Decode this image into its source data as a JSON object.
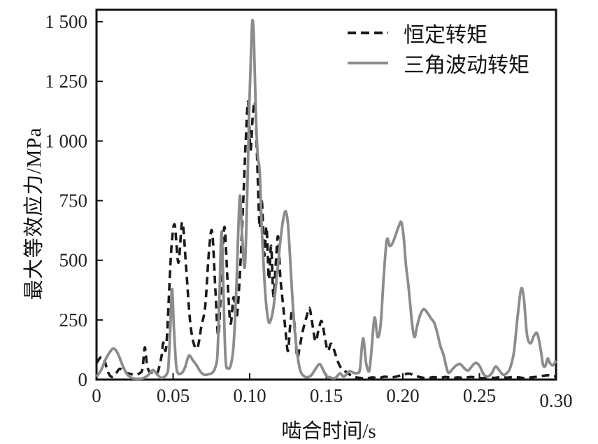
{
  "chart_data": {
    "type": "line",
    "title": "",
    "xlabel": "啮合时间/s",
    "ylabel": "最大等效应力/MPa",
    "xlim": [
      0,
      0.3
    ],
    "ylim": [
      0,
      1550
    ],
    "grid": false,
    "legend_position": "top-right-inside",
    "xticks": {
      "values": [
        0,
        0.05,
        0.1,
        0.15,
        0.2,
        0.25,
        0.3
      ],
      "labels": [
        "0",
        "0.05",
        "0.10",
        "0.15",
        "0.20",
        "0.25",
        "0.30"
      ]
    },
    "yticks": {
      "values": [
        0,
        250,
        500,
        750,
        1000,
        1250,
        1500
      ],
      "labels": [
        "0",
        "250",
        "500",
        "750",
        "1 000",
        "1 250",
        "1 500"
      ]
    },
    "series": [
      {
        "name": "恒定转矩",
        "line_style": "dashed",
        "color": "#1a1a1a",
        "points": [
          [
            0.0,
            70
          ],
          [
            0.003,
            95
          ],
          [
            0.005,
            85
          ],
          [
            0.007,
            40
          ],
          [
            0.009,
            15
          ],
          [
            0.011,
            12
          ],
          [
            0.013,
            28
          ],
          [
            0.015,
            45
          ],
          [
            0.017,
            40
          ],
          [
            0.019,
            30
          ],
          [
            0.022,
            24
          ],
          [
            0.025,
            20
          ],
          [
            0.028,
            26
          ],
          [
            0.03,
            45
          ],
          [
            0.0315,
            135
          ],
          [
            0.033,
            60
          ],
          [
            0.035,
            30
          ],
          [
            0.038,
            35
          ],
          [
            0.04,
            32
          ],
          [
            0.0425,
            100
          ],
          [
            0.0435,
            155
          ],
          [
            0.045,
            120
          ],
          [
            0.046,
            180
          ],
          [
            0.0475,
            380
          ],
          [
            0.049,
            560
          ],
          [
            0.051,
            650
          ],
          [
            0.0535,
            490
          ],
          [
            0.056,
            660
          ],
          [
            0.0585,
            470
          ],
          [
            0.061,
            250
          ],
          [
            0.0635,
            150
          ],
          [
            0.066,
            135
          ],
          [
            0.0685,
            225
          ],
          [
            0.071,
            310
          ],
          [
            0.0735,
            545
          ],
          [
            0.0755,
            620
          ],
          [
            0.0775,
            390
          ],
          [
            0.0795,
            185
          ],
          [
            0.0815,
            420
          ],
          [
            0.0835,
            640
          ],
          [
            0.0855,
            420
          ],
          [
            0.0875,
            235
          ],
          [
            0.0895,
            345
          ],
          [
            0.0915,
            260
          ],
          [
            0.0935,
            430
          ],
          [
            0.0955,
            700
          ],
          [
            0.0975,
            1010
          ],
          [
            0.099,
            1165
          ],
          [
            0.1005,
            960
          ],
          [
            0.102,
            1105
          ],
          [
            0.1035,
            1155
          ],
          [
            0.105,
            900
          ],
          [
            0.1065,
            640
          ],
          [
            0.108,
            745
          ],
          [
            0.1095,
            520
          ],
          [
            0.111,
            640
          ],
          [
            0.1125,
            420
          ],
          [
            0.114,
            560
          ],
          [
            0.1155,
            350
          ],
          [
            0.117,
            480
          ],
          [
            0.1185,
            600
          ],
          [
            0.12,
            430
          ],
          [
            0.122,
            300
          ],
          [
            0.1235,
            195
          ],
          [
            0.125,
            120
          ],
          [
            0.1265,
            230
          ],
          [
            0.128,
            300
          ],
          [
            0.1295,
            215
          ],
          [
            0.131,
            95
          ],
          [
            0.1325,
            130
          ],
          [
            0.1345,
            200
          ],
          [
            0.137,
            260
          ],
          [
            0.139,
            300
          ],
          [
            0.141,
            230
          ],
          [
            0.143,
            160
          ],
          [
            0.145,
            210
          ],
          [
            0.147,
            245
          ],
          [
            0.149,
            180
          ],
          [
            0.151,
            120
          ],
          [
            0.153,
            150
          ],
          [
            0.155,
            125
          ],
          [
            0.157,
            85
          ],
          [
            0.159,
            55
          ],
          [
            0.161,
            40
          ],
          [
            0.163,
            32
          ],
          [
            0.165,
            22
          ],
          [
            0.167,
            14
          ],
          [
            0.169,
            10
          ],
          [
            0.172,
            7
          ],
          [
            0.176,
            5
          ],
          [
            0.18,
            9
          ],
          [
            0.184,
            6
          ],
          [
            0.188,
            12
          ],
          [
            0.192,
            9
          ],
          [
            0.196,
            13
          ],
          [
            0.2,
            20
          ],
          [
            0.204,
            25
          ],
          [
            0.208,
            16
          ],
          [
            0.212,
            9
          ],
          [
            0.216,
            6
          ],
          [
            0.22,
            10
          ],
          [
            0.224,
            7
          ],
          [
            0.228,
            11
          ],
          [
            0.232,
            6
          ],
          [
            0.236,
            9
          ],
          [
            0.24,
            7
          ],
          [
            0.244,
            11
          ],
          [
            0.248,
            9
          ],
          [
            0.252,
            6
          ],
          [
            0.256,
            9
          ],
          [
            0.26,
            7
          ],
          [
            0.264,
            11
          ],
          [
            0.268,
            8
          ],
          [
            0.272,
            11
          ],
          [
            0.276,
            9
          ],
          [
            0.28,
            6
          ],
          [
            0.284,
            9
          ],
          [
            0.288,
            12
          ],
          [
            0.292,
            16
          ],
          [
            0.295,
            18
          ],
          [
            0.298,
            12
          ],
          [
            0.3,
            14
          ]
        ]
      },
      {
        "name": "三角波动转矩",
        "line_style": "solid",
        "color": "#8c8c8c",
        "points": [
          [
            0.0,
            12
          ],
          [
            0.003,
            40
          ],
          [
            0.006,
            85
          ],
          [
            0.009,
            118
          ],
          [
            0.0114,
            130
          ],
          [
            0.014,
            108
          ],
          [
            0.017,
            60
          ],
          [
            0.02,
            22
          ],
          [
            0.0235,
            6
          ],
          [
            0.027,
            3
          ],
          [
            0.03,
            5
          ],
          [
            0.033,
            15
          ],
          [
            0.035,
            28
          ],
          [
            0.037,
            40
          ],
          [
            0.0395,
            22
          ],
          [
            0.042,
            8
          ],
          [
            0.044,
            10
          ],
          [
            0.046,
            25
          ],
          [
            0.047,
            60
          ],
          [
            0.0482,
            220
          ],
          [
            0.0493,
            380
          ],
          [
            0.0505,
            220
          ],
          [
            0.052,
            60
          ],
          [
            0.0535,
            25
          ],
          [
            0.056,
            30
          ],
          [
            0.058,
            55
          ],
          [
            0.0603,
            100
          ],
          [
            0.063,
            80
          ],
          [
            0.0655,
            58
          ],
          [
            0.068,
            32
          ],
          [
            0.0705,
            20
          ],
          [
            0.073,
            22
          ],
          [
            0.0755,
            28
          ],
          [
            0.0775,
            50
          ],
          [
            0.079,
            110
          ],
          [
            0.0803,
            360
          ],
          [
            0.0817,
            620
          ],
          [
            0.083,
            330
          ],
          [
            0.0843,
            80
          ],
          [
            0.086,
            48
          ],
          [
            0.0877,
            62
          ],
          [
            0.0895,
            145
          ],
          [
            0.0913,
            380
          ],
          [
            0.0935,
            765
          ],
          [
            0.095,
            610
          ],
          [
            0.0968,
            472
          ],
          [
            0.0983,
            760
          ],
          [
            0.0998,
            1160
          ],
          [
            0.1013,
            1450
          ],
          [
            0.102,
            1505
          ],
          [
            0.1028,
            1420
          ],
          [
            0.104,
            1120
          ],
          [
            0.1053,
            935
          ],
          [
            0.1065,
            875
          ],
          [
            0.108,
            620
          ],
          [
            0.1095,
            430
          ],
          [
            0.111,
            300
          ],
          [
            0.1125,
            240
          ],
          [
            0.114,
            255
          ],
          [
            0.1155,
            300
          ],
          [
            0.117,
            385
          ],
          [
            0.1185,
            480
          ],
          [
            0.12,
            580
          ],
          [
            0.1218,
            668
          ],
          [
            0.1235,
            705
          ],
          [
            0.125,
            650
          ],
          [
            0.1265,
            500
          ],
          [
            0.128,
            330
          ],
          [
            0.1295,
            200
          ],
          [
            0.131,
            110
          ],
          [
            0.133,
            38
          ],
          [
            0.1355,
            14
          ],
          [
            0.138,
            10
          ],
          [
            0.1405,
            20
          ],
          [
            0.143,
            45
          ],
          [
            0.1457,
            65
          ],
          [
            0.148,
            40
          ],
          [
            0.15,
            16
          ],
          [
            0.153,
            8
          ],
          [
            0.156,
            7
          ],
          [
            0.159,
            26
          ],
          [
            0.1615,
            12
          ],
          [
            0.165,
            35
          ],
          [
            0.168,
            28
          ],
          [
            0.1705,
            28
          ],
          [
            0.172,
            45
          ],
          [
            0.174,
            173
          ],
          [
            0.176,
            70
          ],
          [
            0.178,
            36
          ],
          [
            0.1795,
            120
          ],
          [
            0.1815,
            260
          ],
          [
            0.1835,
            178
          ],
          [
            0.1855,
            230
          ],
          [
            0.1875,
            430
          ],
          [
            0.1895,
            585
          ],
          [
            0.1915,
            560
          ],
          [
            0.1935,
            575
          ],
          [
            0.1955,
            610
          ],
          [
            0.1975,
            645
          ],
          [
            0.199,
            660
          ],
          [
            0.2005,
            600
          ],
          [
            0.202,
            480
          ],
          [
            0.2035,
            400
          ],
          [
            0.205,
            300
          ],
          [
            0.2065,
            210
          ],
          [
            0.2077,
            178
          ],
          [
            0.209,
            215
          ],
          [
            0.211,
            265
          ],
          [
            0.2135,
            295
          ],
          [
            0.216,
            280
          ],
          [
            0.2185,
            255
          ],
          [
            0.2205,
            238
          ],
          [
            0.2225,
            195
          ],
          [
            0.2245,
            140
          ],
          [
            0.2265,
            105
          ],
          [
            0.2285,
            50
          ],
          [
            0.23,
            28
          ],
          [
            0.2325,
            45
          ],
          [
            0.235,
            60
          ],
          [
            0.2375,
            65
          ],
          [
            0.24,
            48
          ],
          [
            0.2425,
            38
          ],
          [
            0.245,
            55
          ],
          [
            0.2475,
            70
          ],
          [
            0.25,
            58
          ],
          [
            0.2525,
            25
          ],
          [
            0.255,
            12
          ],
          [
            0.258,
            26
          ],
          [
            0.2605,
            55
          ],
          [
            0.263,
            38
          ],
          [
            0.2655,
            20
          ],
          [
            0.268,
            28
          ],
          [
            0.27,
            48
          ],
          [
            0.2725,
            115
          ],
          [
            0.275,
            270
          ],
          [
            0.2772,
            380
          ],
          [
            0.279,
            340
          ],
          [
            0.281,
            190
          ],
          [
            0.2833,
            152
          ],
          [
            0.2857,
            185
          ],
          [
            0.2878,
            192
          ],
          [
            0.29,
            125
          ],
          [
            0.2915,
            62
          ],
          [
            0.293,
            57
          ],
          [
            0.2945,
            88
          ],
          [
            0.296,
            70
          ],
          [
            0.2977,
            59
          ],
          [
            0.299,
            68
          ],
          [
            0.3,
            79
          ]
        ]
      }
    ]
  }
}
